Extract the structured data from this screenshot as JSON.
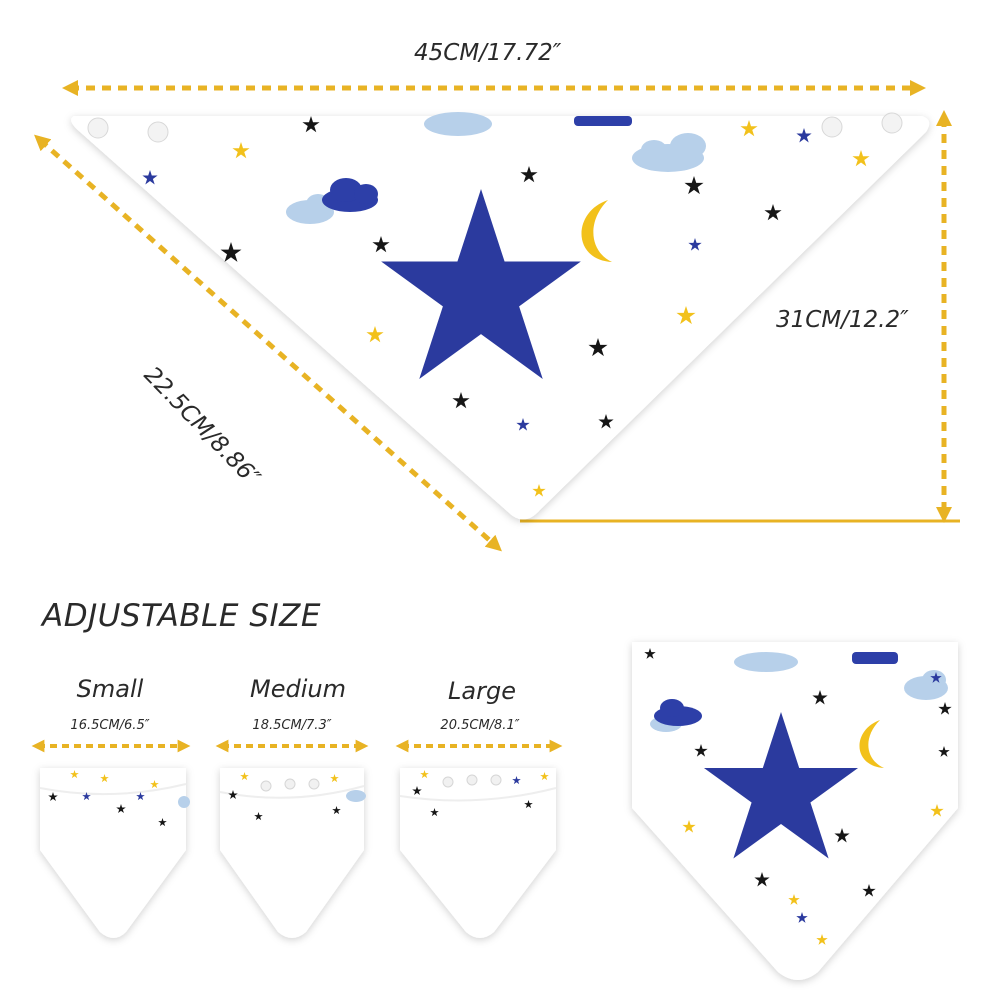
{
  "dimensions": {
    "width_label": "45CM/17.72″",
    "height_label": "31CM/12.2″",
    "side_label": "22.5CM/8.86″"
  },
  "adjustable": {
    "title": "ADJUSTABLE SIZE",
    "sizes": [
      {
        "name": "Small",
        "measure": "16.5CM/6.5″"
      },
      {
        "name": "Medium",
        "measure": "18.5CM/7.3″"
      },
      {
        "name": "Large",
        "measure": "20.5CM/8.1″"
      }
    ]
  },
  "colors": {
    "arrow": "#e8b324",
    "star_blue": "#2b3a9e",
    "star_black": "#161616",
    "star_yellow": "#f2c11b",
    "cloud_light": "#b7d0ea",
    "cloud_dark": "#2d3fa8",
    "fabric": "#ffffff"
  },
  "icons": [
    "star-icon",
    "moon-icon",
    "cloud-icon",
    "snap-button-icon",
    "double-arrow-icon"
  ]
}
